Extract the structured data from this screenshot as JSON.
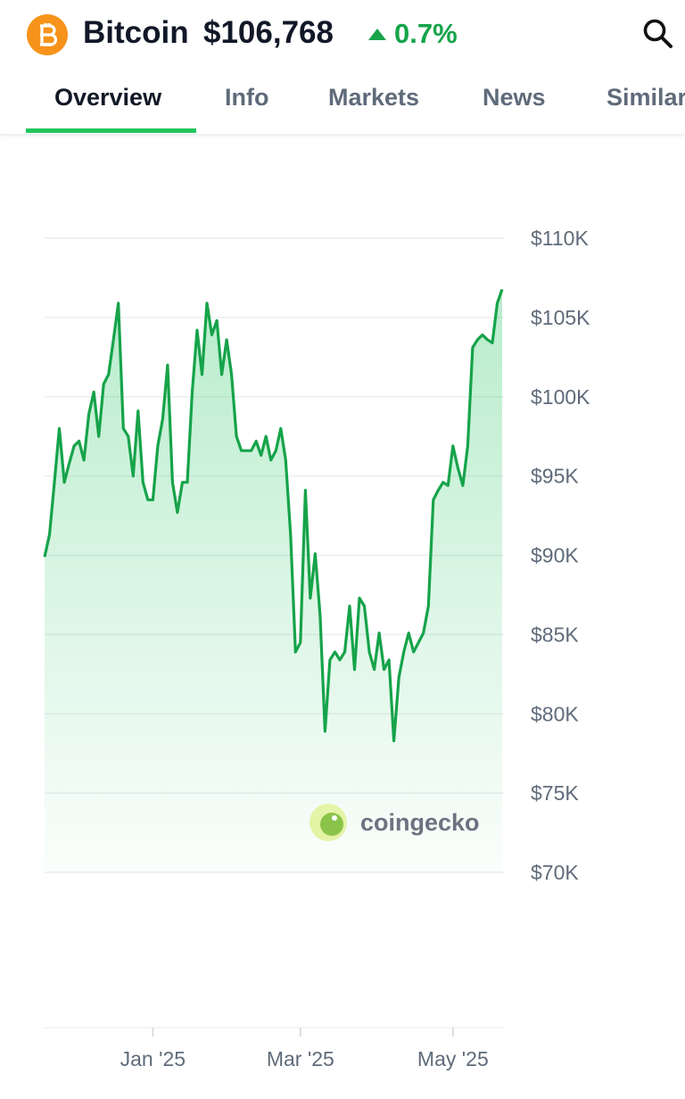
{
  "header": {
    "name": "Bitcoin",
    "price": "$106,768",
    "change": "0.7%"
  },
  "tabs": [
    "Overview",
    "Info",
    "Markets",
    "News",
    "Similar"
  ],
  "watermark": "coingecko",
  "chart_data": {
    "type": "line",
    "categories": [
      null,
      null,
      null,
      null,
      null,
      null,
      null,
      null,
      null,
      null,
      null,
      null,
      null,
      null,
      null,
      null,
      null,
      null,
      null,
      null,
      null,
      null,
      "Jan '25",
      null,
      null,
      null,
      null,
      null,
      null,
      null,
      null,
      null,
      null,
      null,
      null,
      null,
      null,
      null,
      null,
      null,
      null,
      null,
      null,
      null,
      null,
      null,
      null,
      null,
      null,
      null,
      null,
      null,
      "Mar '25",
      null,
      null,
      null,
      null,
      null,
      null,
      null,
      null,
      null,
      null,
      null,
      null,
      null,
      null,
      null,
      null,
      null,
      null,
      null,
      null,
      null,
      null,
      null,
      null,
      null,
      null,
      null,
      null,
      null,
      null,
      "May '25",
      null,
      null,
      null,
      null,
      null,
      null,
      null,
      null,
      null,
      null
    ],
    "series": [
      {
        "name": "Bitcoin",
        "color": "#16a34a",
        "values": [
          89900,
          91300,
          94600,
          98000,
          94600,
          95800,
          96900,
          97200,
          96000,
          98900,
          100300,
          97500,
          100800,
          101400,
          103600,
          105900,
          98000,
          97500,
          95000,
          99100,
          94600,
          93500,
          93500,
          96900,
          98600,
          102000,
          94600,
          92700,
          94600,
          94600,
          100300,
          104200,
          101400,
          105900,
          103900,
          104800,
          101400,
          103600,
          101400,
          97500,
          96600,
          96600,
          96600,
          97200,
          96300,
          97500,
          96000,
          96600,
          98000,
          96000,
          91300,
          83900,
          84500,
          94100,
          87300,
          90100,
          86200,
          78900,
          83400,
          83900,
          83400,
          83900,
          86800,
          82800,
          87300,
          86800,
          83900,
          82800,
          85100,
          82800,
          83400,
          78300,
          82300,
          83900,
          85100,
          83900,
          84500,
          85100,
          86800,
          93500,
          94100,
          94600,
          94400,
          96900,
          95500,
          94400,
          96900,
          103100,
          103600,
          103900,
          103600,
          103400,
          105900,
          106768
        ]
      }
    ],
    "ylim": [
      70000,
      110000
    ],
    "yticks": [
      {
        "value": 110000,
        "label": "$110K"
      },
      {
        "value": 105000,
        "label": "$105K"
      },
      {
        "value": 100000,
        "label": "$100K"
      },
      {
        "value": 95000,
        "label": "$95K"
      },
      {
        "value": 90000,
        "label": "$90K"
      },
      {
        "value": 85000,
        "label": "$85K"
      },
      {
        "value": 80000,
        "label": "$80K"
      },
      {
        "value": 75000,
        "label": "$75K"
      },
      {
        "value": 70000,
        "label": "$70K"
      }
    ],
    "grid": true
  }
}
